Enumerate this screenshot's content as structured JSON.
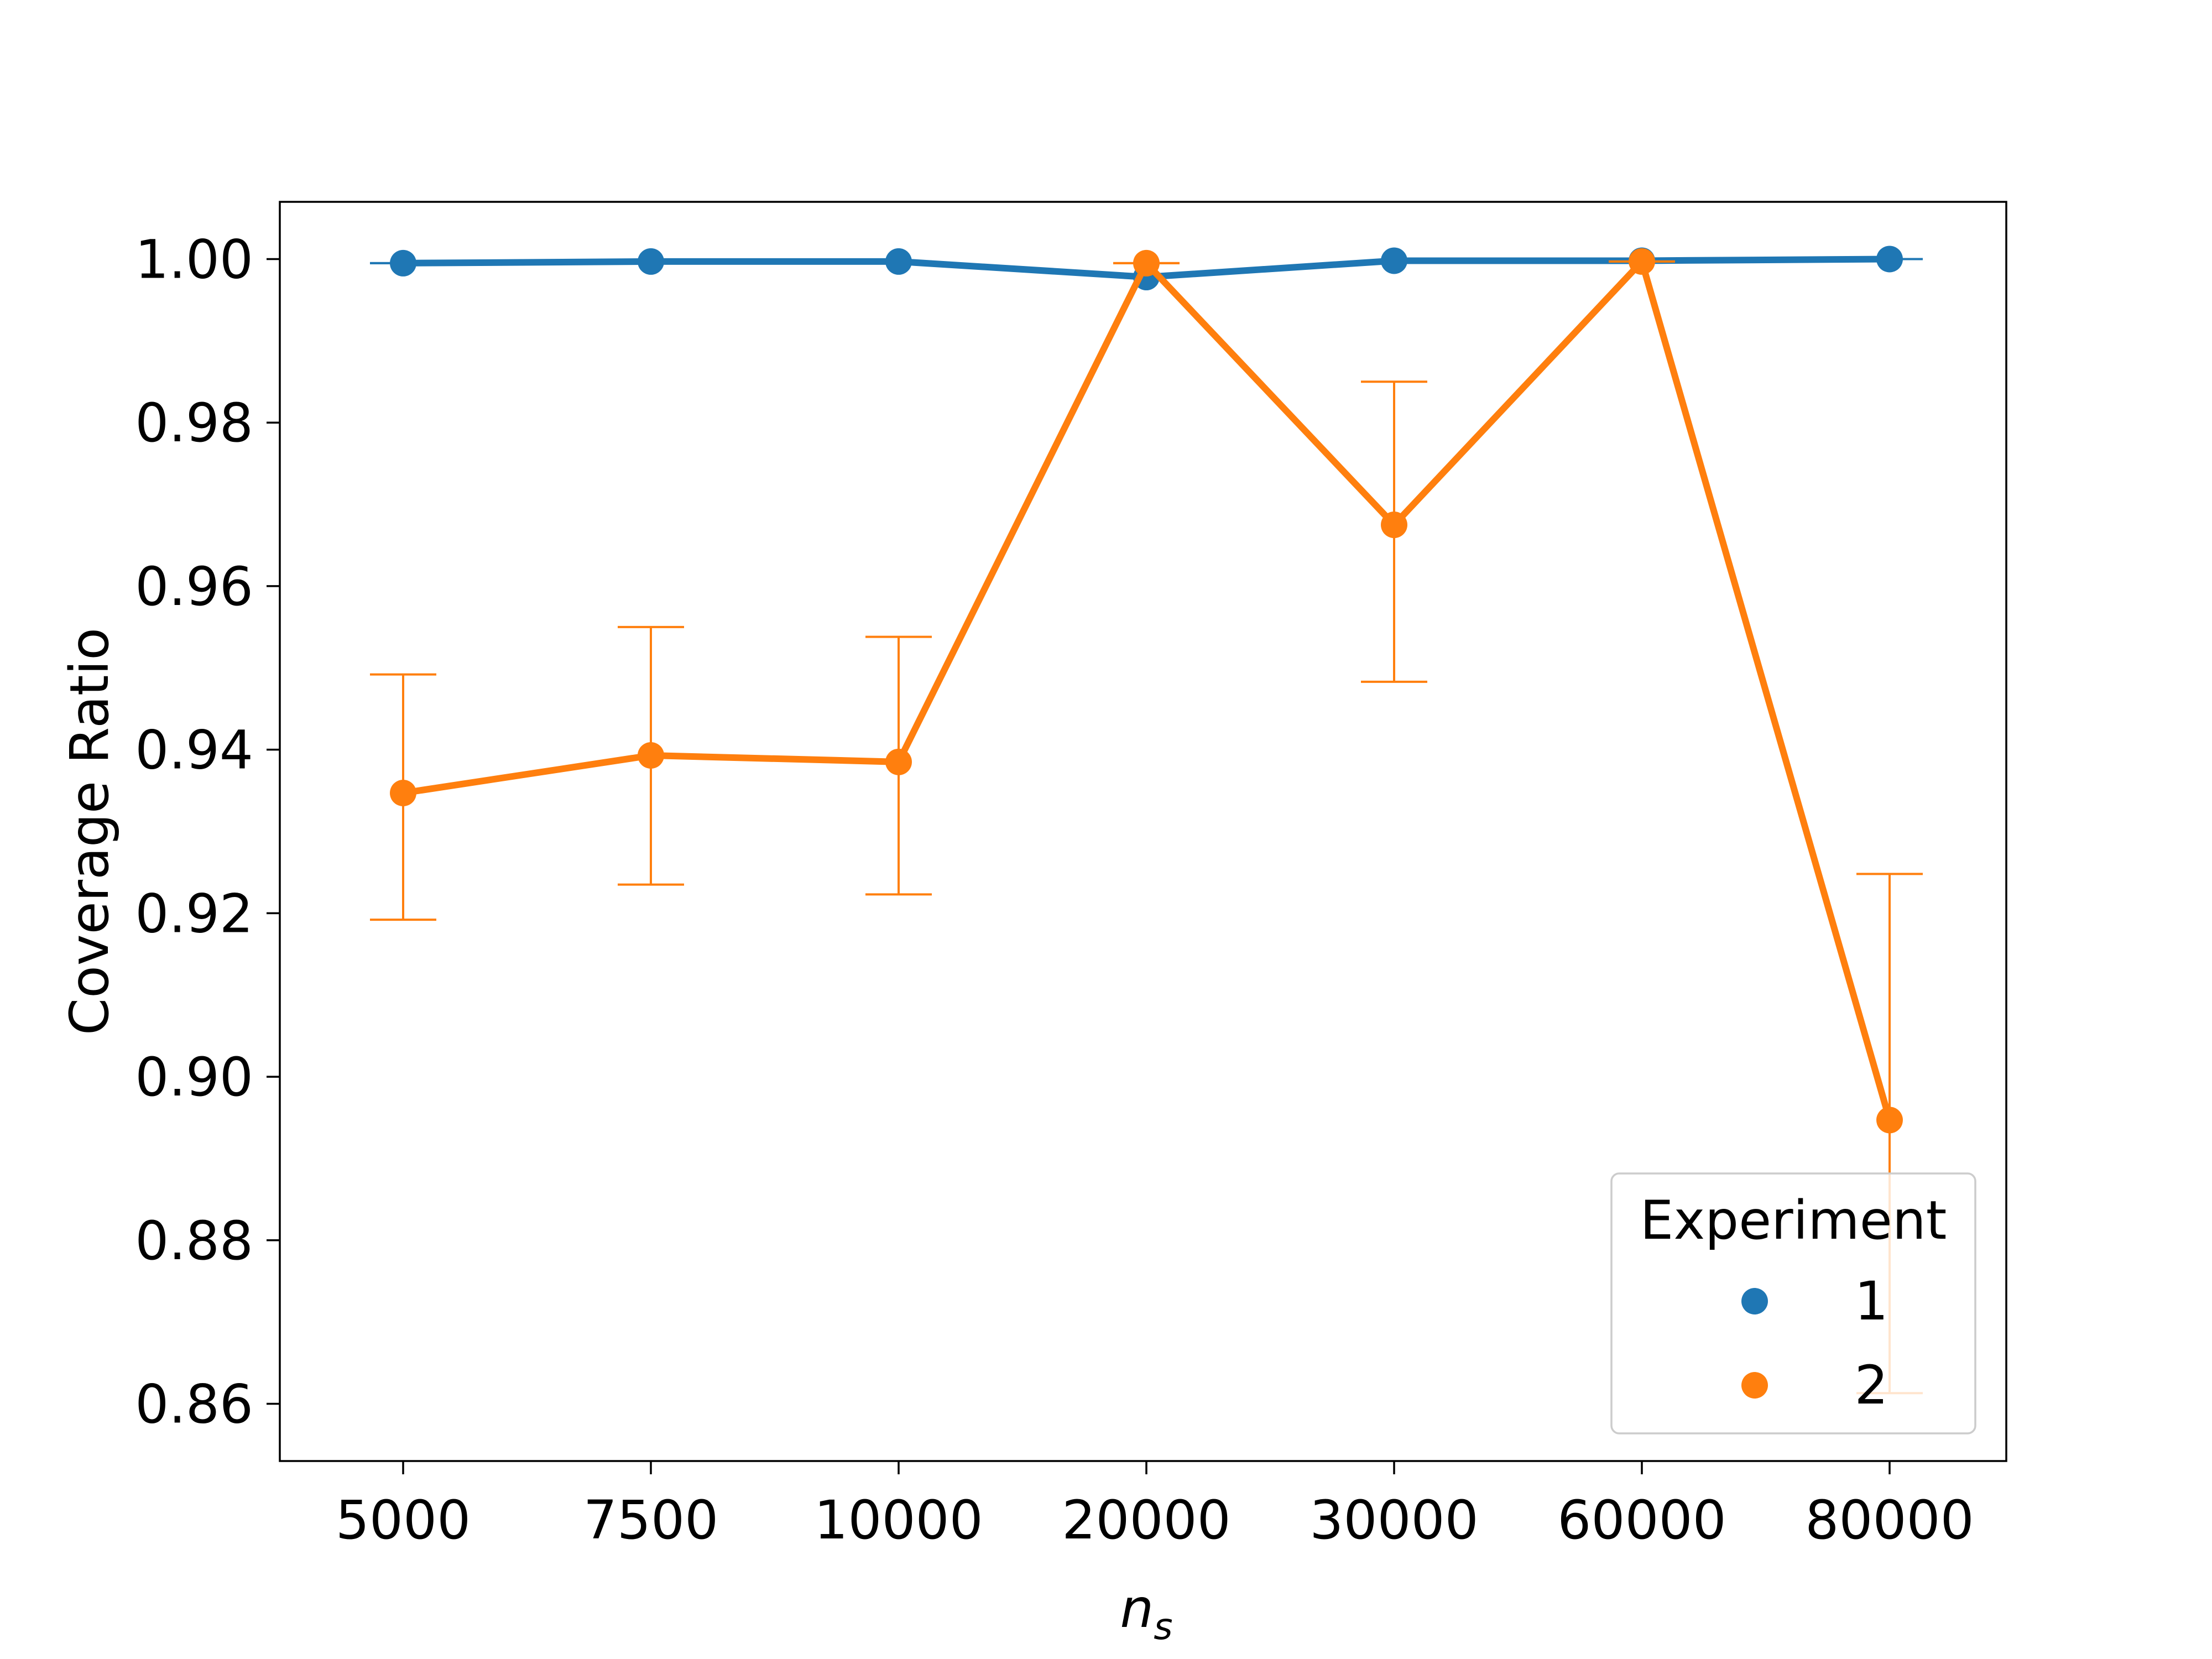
{
  "chart_data": {
    "type": "line",
    "xlabel_base": "n",
    "xlabel_sub": "s",
    "ylabel": "Coverage Ratio",
    "categories": [
      "5000",
      "7500",
      "10000",
      "20000",
      "30000",
      "60000",
      "80000"
    ],
    "ylim": [
      0.853,
      1.007
    ],
    "yticks": [
      0.86,
      0.88,
      0.9,
      0.92,
      0.94,
      0.96,
      0.98,
      1.0
    ],
    "ytick_labels": [
      "0.86",
      "0.88",
      "0.90",
      "0.92",
      "0.94",
      "0.96",
      "0.98",
      "1.00"
    ],
    "grid": false,
    "legend": {
      "title": "Experiment",
      "position": "lower-right"
    },
    "series": [
      {
        "name": "1",
        "color": "#1f77b4",
        "values": [
          0.9995,
          0.9997,
          0.9997,
          0.9978,
          0.9998,
          0.9998,
          1.0
        ],
        "err_low": [
          0.9995,
          0.9997,
          0.9997,
          0.9978,
          0.9998,
          0.9998,
          1.0
        ],
        "err_high": [
          0.9995,
          0.9997,
          0.9997,
          0.9978,
          0.9998,
          0.9998,
          1.0
        ]
      },
      {
        "name": "2",
        "color": "#ff7f0e",
        "values": [
          0.9347,
          0.9393,
          0.9385,
          0.9995,
          0.9675,
          0.9997,
          0.8947
        ],
        "err_low": [
          0.9192,
          0.9235,
          0.9223,
          0.9995,
          0.9483,
          0.9997,
          0.8613
        ],
        "err_high": [
          0.9492,
          0.955,
          0.9538,
          0.9995,
          0.985,
          0.9997,
          0.9248
        ]
      }
    ]
  }
}
